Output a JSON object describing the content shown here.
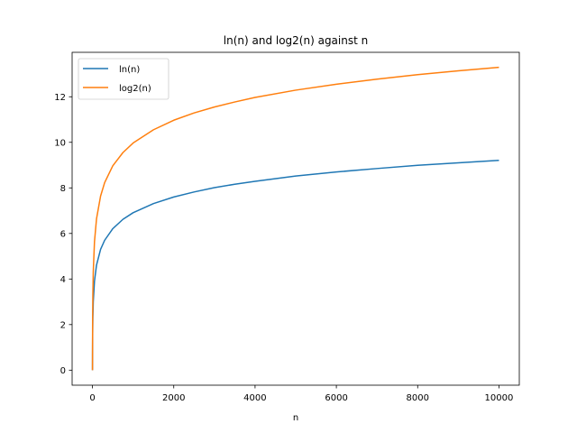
{
  "chart_data": {
    "type": "line",
    "title": "ln(n) and log2(n) against n",
    "xlabel": "n",
    "ylabel": "",
    "xlim": [
      -500,
      10500
    ],
    "ylim": [
      -0.66,
      13.95
    ],
    "xticks": [
      0,
      2000,
      4000,
      6000,
      8000,
      10000
    ],
    "xtick_labels": [
      "0",
      "2000",
      "4000",
      "6000",
      "8000",
      "10000"
    ],
    "yticks": [
      0,
      2,
      4,
      6,
      8,
      10,
      12
    ],
    "ytick_labels": [
      "0",
      "2",
      "4",
      "6",
      "8",
      "10",
      "12"
    ],
    "grid": false,
    "legend_position": "top-left",
    "series": [
      {
        "name": "ln(n)",
        "color": "#1f77b4",
        "x": [
          1,
          2,
          5,
          10,
          20,
          50,
          100,
          200,
          300,
          500,
          750,
          1000,
          1500,
          2000,
          2500,
          3000,
          3500,
          4000,
          5000,
          6000,
          7000,
          8000,
          9000,
          10000
        ],
        "values": [
          0,
          0.69,
          1.61,
          2.3,
          3.0,
          3.91,
          4.61,
          5.3,
          5.7,
          6.21,
          6.62,
          6.91,
          7.31,
          7.6,
          7.82,
          8.01,
          8.16,
          8.29,
          8.52,
          8.7,
          8.85,
          8.99,
          9.1,
          9.21
        ]
      },
      {
        "name": "log2(n)",
        "color": "#ff7f0e",
        "x": [
          1,
          2,
          5,
          10,
          20,
          50,
          100,
          200,
          300,
          500,
          750,
          1000,
          1500,
          2000,
          2500,
          3000,
          3500,
          4000,
          5000,
          6000,
          7000,
          8000,
          9000,
          10000
        ],
        "values": [
          0,
          1.0,
          2.32,
          3.32,
          4.32,
          5.64,
          6.64,
          7.64,
          8.23,
          8.97,
          9.55,
          9.97,
          10.55,
          10.97,
          11.29,
          11.55,
          11.77,
          11.97,
          12.29,
          12.55,
          12.77,
          12.97,
          13.14,
          13.29
        ]
      }
    ]
  }
}
